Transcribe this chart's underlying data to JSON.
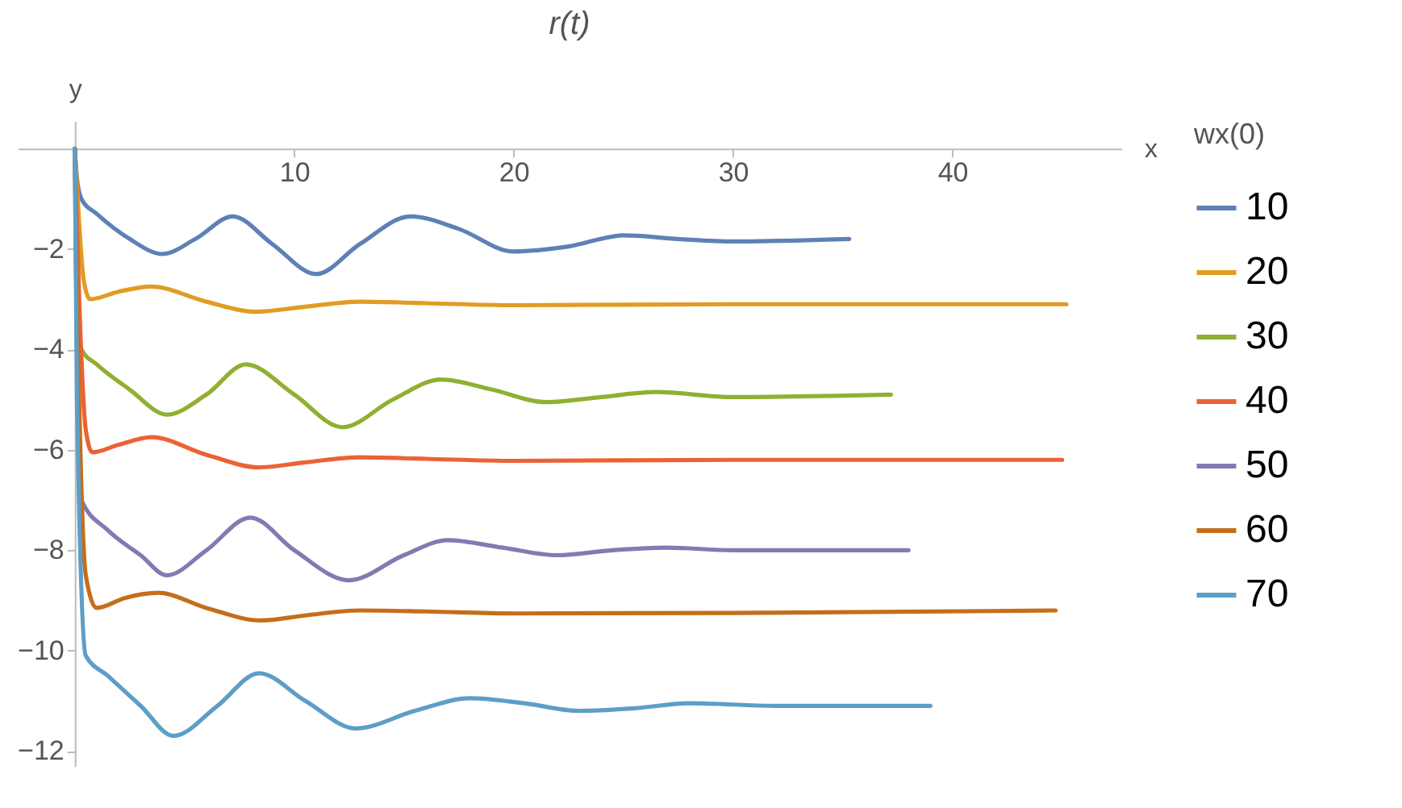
{
  "chart_data": {
    "type": "line",
    "title": "r(t)",
    "xlabel": "x",
    "ylabel": "y",
    "legend_title": "wx(0)",
    "xlim": [
      -2.6,
      47.7
    ],
    "ylim": [
      -12.3,
      0.55
    ],
    "xticks": [
      10,
      20,
      30,
      40
    ],
    "yticks": [
      -2,
      -4,
      -6,
      -8,
      -10,
      -12
    ],
    "grid": false,
    "legend": "right",
    "line_style": "solid",
    "marker": "none",
    "series": [
      {
        "name": "10",
        "color": "#5e81b5",
        "x": [
          0,
          0.1,
          0.3,
          1,
          2.5,
          4,
          5.5,
          7.2,
          9,
          11,
          13,
          15.3,
          17.5,
          20,
          22.5,
          25,
          27.5,
          30,
          35.3
        ],
        "values": [
          0,
          -0.6,
          -1.0,
          -1.3,
          -1.8,
          -2.1,
          -1.8,
          -1.35,
          -1.9,
          -2.5,
          -1.9,
          -1.35,
          -1.6,
          -2.05,
          -1.95,
          -1.73,
          -1.8,
          -1.85,
          -1.8
        ]
      },
      {
        "name": "20",
        "color": "#e19c24",
        "x": [
          0,
          0.2,
          0.4,
          0.7,
          2,
          3.5,
          6,
          8.2,
          10.5,
          13,
          16,
          20,
          30,
          45.2
        ],
        "values": [
          0,
          -1.5,
          -2.6,
          -3.0,
          -2.85,
          -2.75,
          -3.05,
          -3.25,
          -3.15,
          -3.05,
          -3.08,
          -3.12,
          -3.1,
          -3.1
        ]
      },
      {
        "name": "30",
        "color": "#8fb032",
        "x": [
          0,
          0.1,
          0.3,
          1,
          2.5,
          4.2,
          6,
          7.8,
          10,
          12.2,
          14.5,
          16.7,
          19,
          21.5,
          24,
          26.5,
          30,
          37.2
        ],
        "values": [
          0,
          -2,
          -4.0,
          -4.3,
          -4.8,
          -5.3,
          -4.9,
          -4.3,
          -4.9,
          -5.55,
          -5.0,
          -4.6,
          -4.8,
          -5.05,
          -4.95,
          -4.85,
          -4.95,
          -4.9
        ]
      },
      {
        "name": "40",
        "color": "#eb6235",
        "x": [
          0,
          0.2,
          0.5,
          0.8,
          2,
          3.5,
          6,
          8.4,
          10.5,
          13,
          16,
          20,
          30,
          45
        ],
        "values": [
          0,
          -3,
          -5.6,
          -6.05,
          -5.9,
          -5.75,
          -6.1,
          -6.35,
          -6.25,
          -6.15,
          -6.18,
          -6.22,
          -6.2,
          -6.2
        ]
      },
      {
        "name": "50",
        "color": "#8778b3",
        "x": [
          0,
          0.1,
          0.3,
          1.5,
          3,
          4.2,
          6,
          8,
          10,
          12.5,
          15,
          17,
          19.5,
          22,
          24.5,
          27,
          30,
          38
        ],
        "values": [
          0,
          -4,
          -7.0,
          -7.6,
          -8.1,
          -8.5,
          -8.0,
          -7.35,
          -8.0,
          -8.6,
          -8.1,
          -7.8,
          -7.95,
          -8.1,
          -8.0,
          -7.95,
          -8.0,
          -8.0
        ]
      },
      {
        "name": "60",
        "color": "#c56e1a",
        "x": [
          0,
          0.2,
          0.5,
          1,
          2.3,
          3.8,
          6,
          8.5,
          10.5,
          13,
          16,
          20,
          30,
          44.7
        ],
        "values": [
          0,
          -5,
          -8.5,
          -9.15,
          -8.95,
          -8.85,
          -9.15,
          -9.4,
          -9.3,
          -9.2,
          -9.22,
          -9.26,
          -9.25,
          -9.2
        ]
      },
      {
        "name": "70",
        "color": "#5d9ec7",
        "x": [
          0,
          0.1,
          0.5,
          1.5,
          3,
          4.5,
          6.5,
          8.4,
          10.5,
          12.8,
          15.5,
          18,
          20.5,
          23,
          25.5,
          28,
          32,
          39
        ],
        "values": [
          0,
          -5,
          -10.1,
          -10.5,
          -11.1,
          -11.7,
          -11.1,
          -10.45,
          -11.0,
          -11.55,
          -11.2,
          -10.95,
          -11.05,
          -11.2,
          -11.15,
          -11.05,
          -11.1,
          -11.1
        ]
      }
    ]
  }
}
